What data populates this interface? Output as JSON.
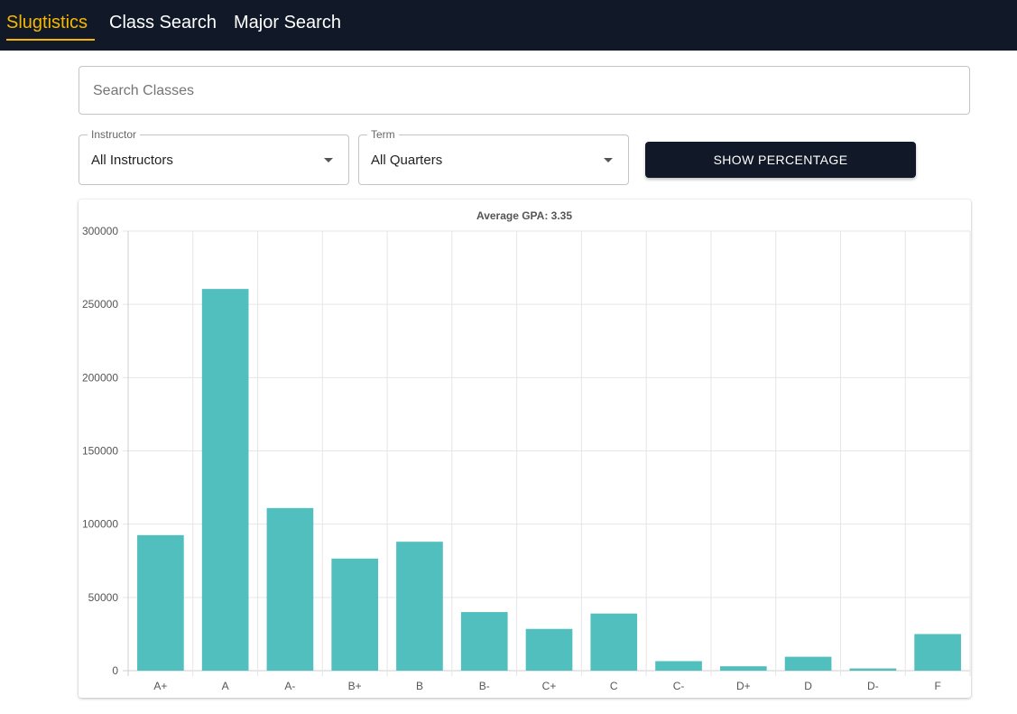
{
  "nav": {
    "brand": "Slugtistics",
    "links": [
      "Class Search",
      "Major Search"
    ]
  },
  "search": {
    "placeholder": "Search Classes",
    "value": ""
  },
  "filters": {
    "instructor": {
      "label": "Instructor",
      "value": "All Instructors"
    },
    "term": {
      "label": "Term",
      "value": "All Quarters"
    }
  },
  "show_percentage_label": "SHOW PERCENTAGE",
  "colors": {
    "nav_bg": "#111827",
    "brand": "#f5b800",
    "bar": "#52bfbf"
  },
  "chart_data": {
    "type": "bar",
    "title": "Average GPA: 3.35",
    "categories": [
      "A+",
      "A",
      "A-",
      "B+",
      "B",
      "B-",
      "C+",
      "C",
      "C-",
      "D+",
      "D",
      "D-",
      "F"
    ],
    "values": [
      92500,
      260500,
      111000,
      76500,
      88000,
      40000,
      28500,
      39000,
      6500,
      3000,
      9500,
      1500,
      25000
    ],
    "ylim": [
      0,
      300000
    ],
    "yticks": [
      0,
      50000,
      100000,
      150000,
      200000,
      250000,
      300000
    ],
    "grid": true,
    "legend": "none"
  }
}
